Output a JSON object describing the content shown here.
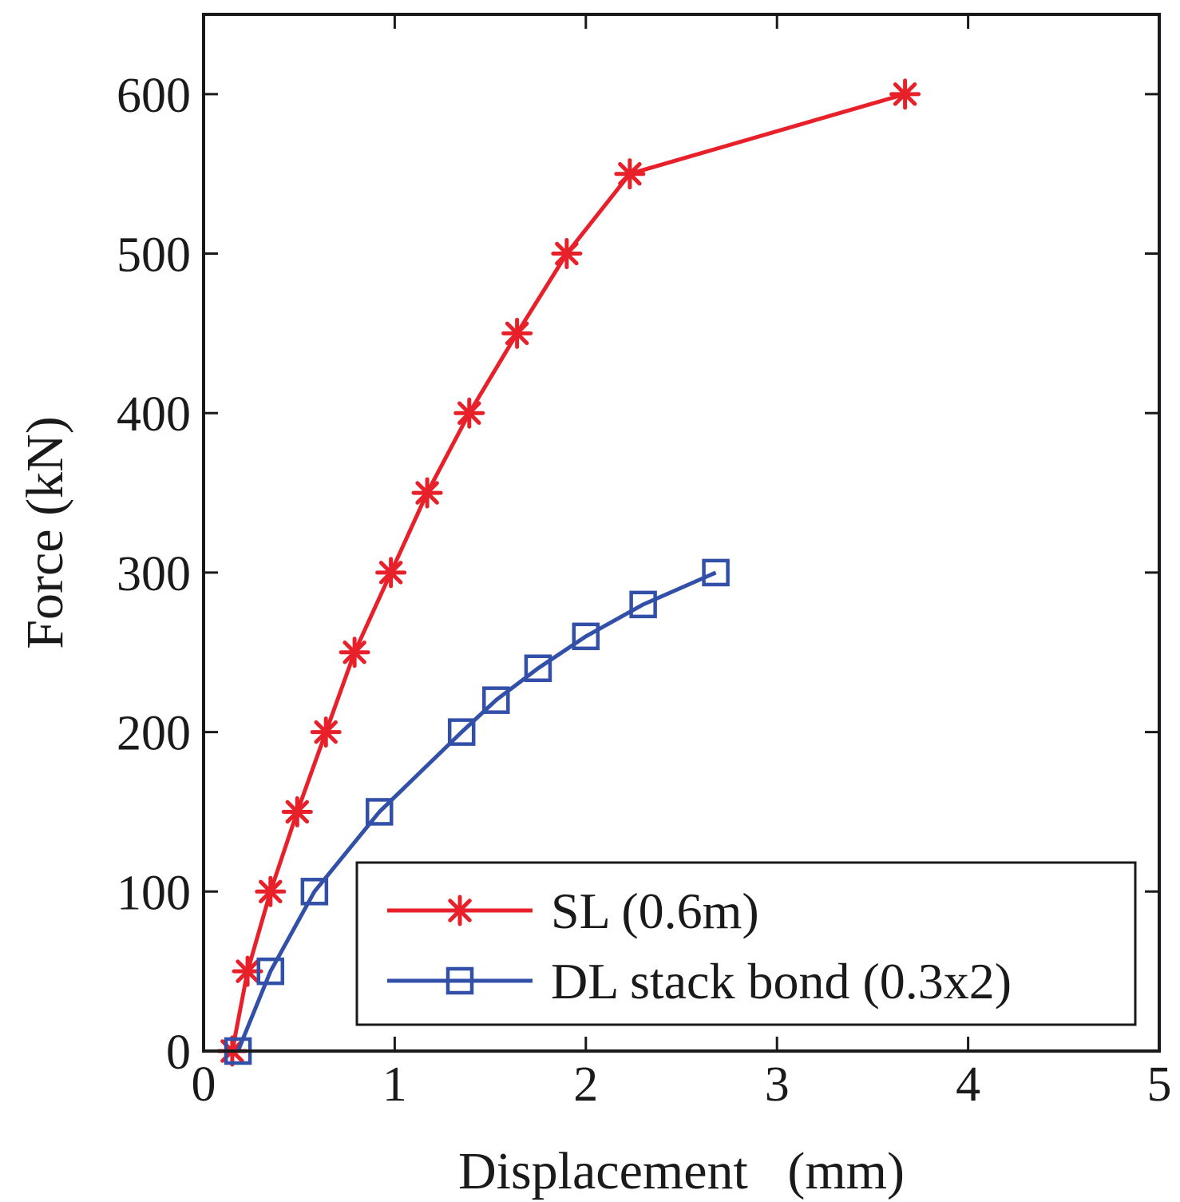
{
  "chart_data": {
    "type": "line",
    "xlabel": "Displacement   (mm)",
    "ylabel": "Force (kN)",
    "xlim": [
      0,
      5
    ],
    "ylim": [
      0,
      650
    ],
    "xticks": [
      0,
      1,
      2,
      3,
      4,
      5
    ],
    "yticks": [
      0,
      100,
      200,
      300,
      400,
      500,
      600
    ],
    "grid": false,
    "legend_position": "bottom-right",
    "series": [
      {
        "name": "SL (0.6m)",
        "color": "#e8202a",
        "marker": "asterisk",
        "x": [
          0.15,
          0.23,
          0.35,
          0.49,
          0.64,
          0.79,
          0.98,
          1.17,
          1.39,
          1.64,
          1.9,
          2.23,
          3.67
        ],
        "y": [
          0,
          50,
          100,
          150,
          200,
          250,
          300,
          350,
          400,
          450,
          500,
          550,
          600
        ]
      },
      {
        "name": "DL stack bond (0.3x2)",
        "color": "#3350a8",
        "marker": "square",
        "x": [
          0.18,
          0.35,
          0.58,
          0.92,
          1.35,
          1.53,
          1.75,
          2.0,
          2.3,
          2.68
        ],
        "y": [
          0,
          50,
          100,
          150,
          200,
          220,
          240,
          260,
          280,
          300
        ]
      }
    ]
  }
}
